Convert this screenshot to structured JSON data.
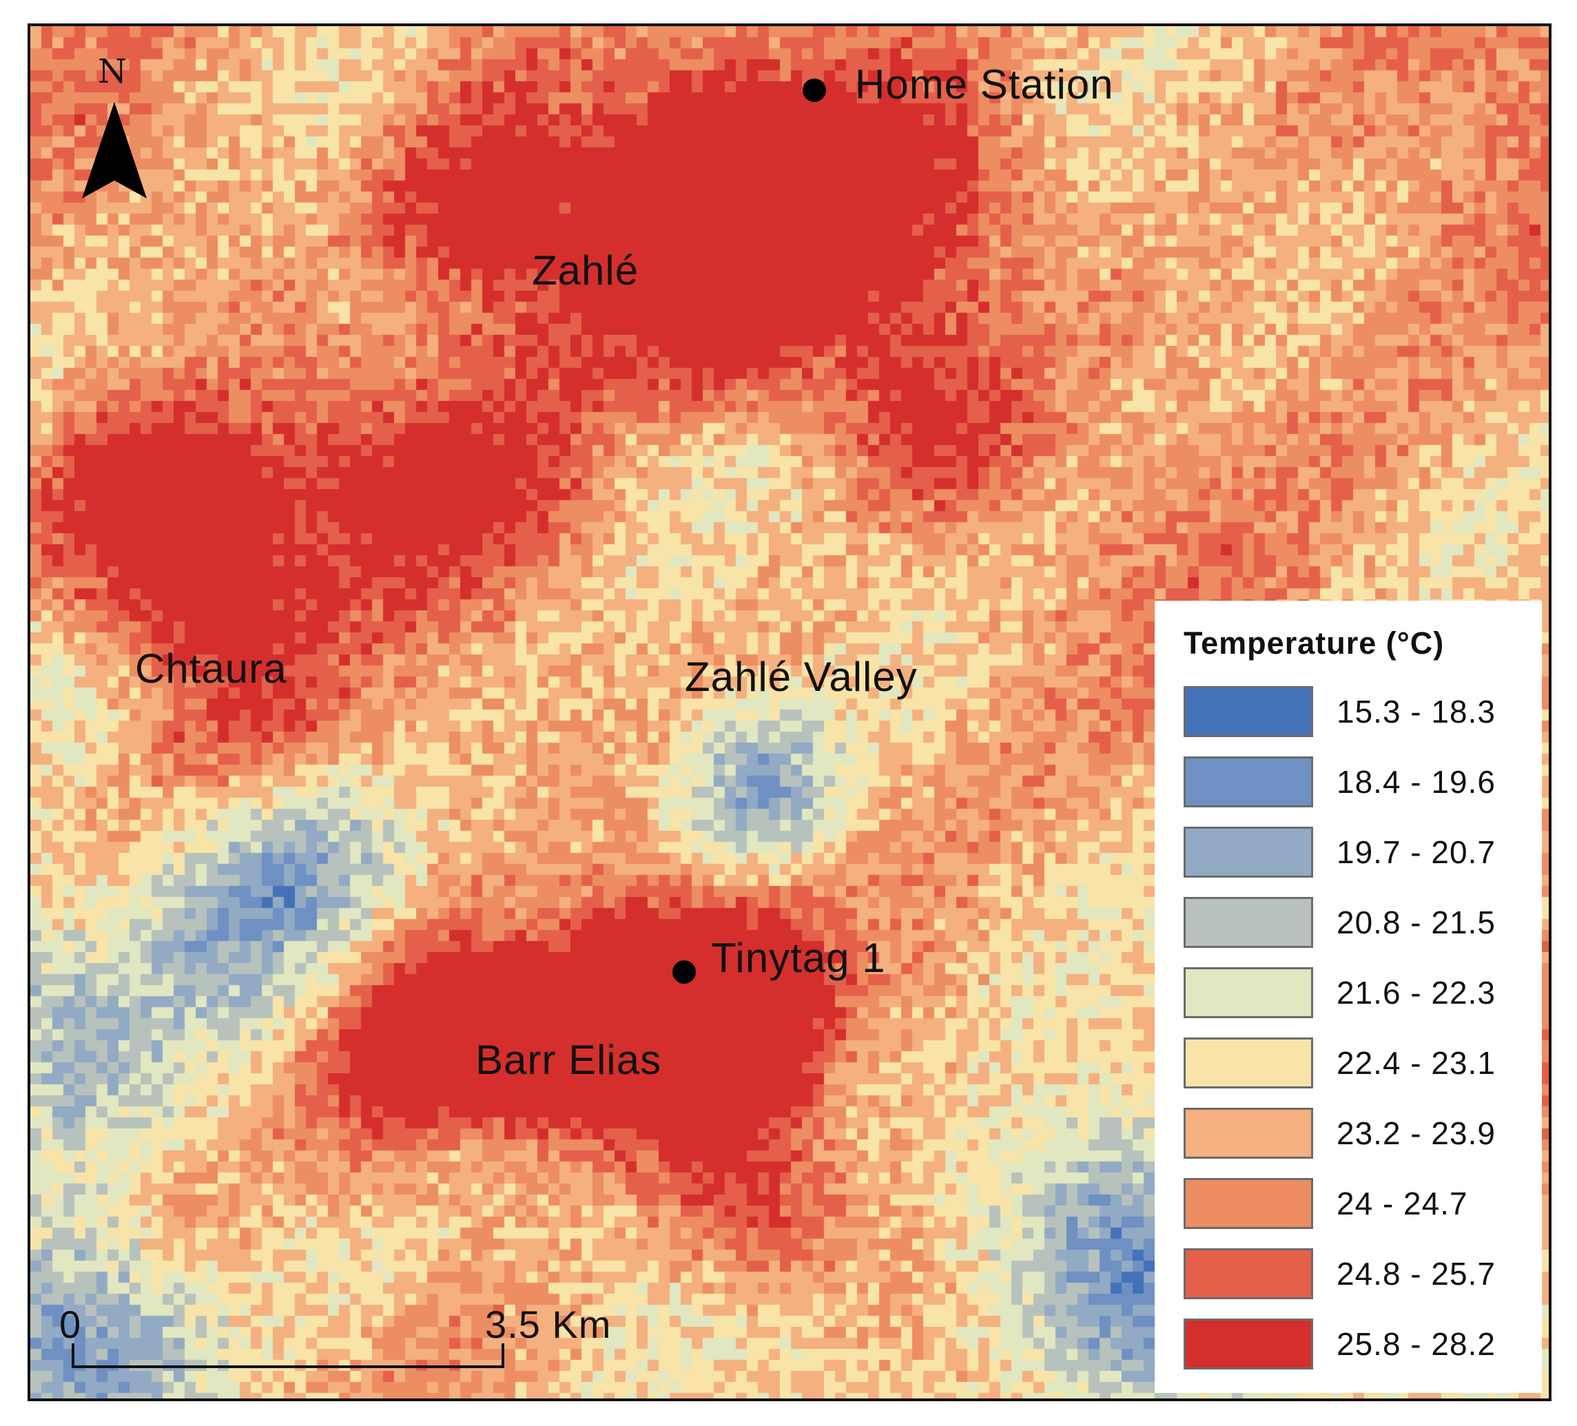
{
  "legend": {
    "title": "Temperature (°C)",
    "classes": [
      {
        "label": "15.3 - 18.3",
        "color": "#4472b8"
      },
      {
        "label": "18.4 - 19.6",
        "color": "#6e90c2"
      },
      {
        "label": "19.7 - 20.7",
        "color": "#93aac4"
      },
      {
        "label": "20.8 - 21.5",
        "color": "#b7c2bd"
      },
      {
        "label": "21.6 - 22.3",
        "color": "#e1e7c0"
      },
      {
        "label": "22.4 - 23.1",
        "color": "#f8e4a8"
      },
      {
        "label": "23.2 - 23.9",
        "color": "#f4b07f"
      },
      {
        "label": "24 - 24.7",
        "color": "#ed8d62"
      },
      {
        "label": "24.8 - 25.7",
        "color": "#e4604a"
      },
      {
        "label": "25.8 - 28.2",
        "color": "#d42f2c"
      }
    ]
  },
  "places": {
    "zahle": "Zahlé",
    "chtaura": "Chtaura",
    "zahle_valley": "Zahlé Valley",
    "barr_elias": "Barr Elias"
  },
  "stations": {
    "home": "Home Station",
    "tinytag": "Tinytag 1"
  },
  "north_arrow": {
    "label": "N"
  },
  "scale_bar": {
    "start": "0",
    "end": "3.5 Km"
  }
}
